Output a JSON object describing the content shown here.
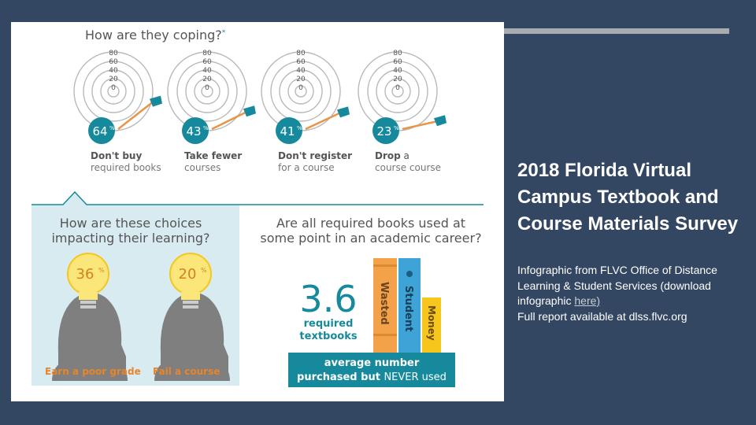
{
  "slide": {
    "title": "2018 Florida Virtual Campus Textbook and Course Materials Survey",
    "desc_line1": "Infographic from FLVC Office of Distance Learning & Student Services (download infographic",
    "desc_link": "here)",
    "desc_line2": "Full report available at dlss.flvc.org"
  },
  "colors": {
    "background": "#344762",
    "teal": "#168a9c",
    "light_blue_panel": "#d8ebf1",
    "orange": "#f3a24a",
    "yellow": "#f6c61c",
    "bulb_yellow": "#fbe67a",
    "head_gray": "#7f7f7f",
    "heading_gray": "#555555"
  },
  "infographic": {
    "coping_title": "How are they coping?",
    "coping_footnote": "*",
    "targets": [
      {
        "percent": 64,
        "label1": "Don't buy",
        "label2": "required books",
        "rings": [
          "80",
          "60",
          "40",
          "20",
          "0"
        ]
      },
      {
        "percent": 43,
        "label1": "Take fewer",
        "label2": "courses",
        "rings": [
          "80",
          "60",
          "40",
          "20",
          "0"
        ]
      },
      {
        "percent": 41,
        "label1": "Don't register",
        "label2": "for a course",
        "rings": [
          "80",
          "60",
          "40",
          "20",
          "0"
        ]
      },
      {
        "percent": 23,
        "label1": "Drop",
        "label1b": "a",
        "label2": "course course",
        "rings": [
          "80",
          "60",
          "40",
          "20",
          "0"
        ]
      }
    ],
    "impact_title1": "How are these choices",
    "impact_title2": "impacting their learning?",
    "bulbs": [
      {
        "percent": 36,
        "label": "Earn a poor grade"
      },
      {
        "percent": 20,
        "label": "Fail a course"
      }
    ],
    "books_title1": "Are all required books used at",
    "books_title2": "some point in an academic career?",
    "big_number": "3.6",
    "req1": "required",
    "req2": "textbooks",
    "book_labels": [
      "Wasted",
      "Student",
      "Money"
    ],
    "banner1": "average number",
    "banner2a": "purchased but",
    "banner2b": "NEVER used",
    "percent_sign": "%"
  }
}
